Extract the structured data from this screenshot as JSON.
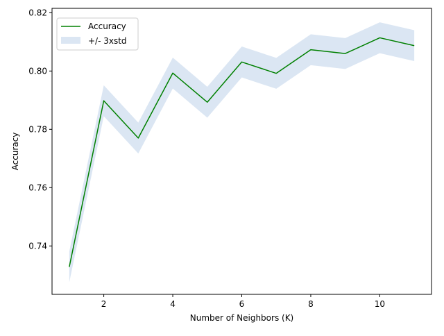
{
  "chart_data": {
    "type": "line",
    "title": "",
    "xlabel": "Number of Neighbors (K)",
    "ylabel": "Accuracy",
    "x": [
      1,
      2,
      3,
      4,
      5,
      6,
      7,
      8,
      9,
      10,
      11
    ],
    "series": [
      {
        "name": "Accuracy",
        "values": [
          0.7328,
          0.7898,
          0.777,
          0.7993,
          0.7893,
          0.8031,
          0.7992,
          0.8073,
          0.806,
          0.8114,
          0.8087
        ],
        "color": "#008000"
      }
    ],
    "band": {
      "name": "+/- 3xstd",
      "lower": [
        0.7275,
        0.7845,
        0.7717,
        0.794,
        0.784,
        0.7978,
        0.7939,
        0.802,
        0.8007,
        0.8061,
        0.8034
      ],
      "upper": [
        0.7381,
        0.7951,
        0.7823,
        0.8046,
        0.7946,
        0.8084,
        0.8045,
        0.8126,
        0.8113,
        0.8167,
        0.814
      ],
      "color": "#dbe6f3"
    },
    "xlim": [
      0.5,
      11.5
    ],
    "ylim": [
      0.7234,
      0.8215
    ],
    "xticks": [
      2,
      4,
      6,
      8,
      10
    ],
    "yticks": [
      0.74,
      0.76,
      0.78,
      0.8,
      0.82
    ],
    "ytick_labels": [
      "0.74",
      "0.76",
      "0.78",
      "0.80",
      "0.82"
    ],
    "xtick_labels": [
      "2",
      "4",
      "6",
      "8",
      "10"
    ],
    "grid": false,
    "legend_position": "top-left",
    "legend": [
      {
        "label": "Accuracy",
        "kind": "line",
        "color": "#008000"
      },
      {
        "label": "+/- 3xstd",
        "kind": "patch",
        "color": "#dbe6f3"
      }
    ]
  }
}
